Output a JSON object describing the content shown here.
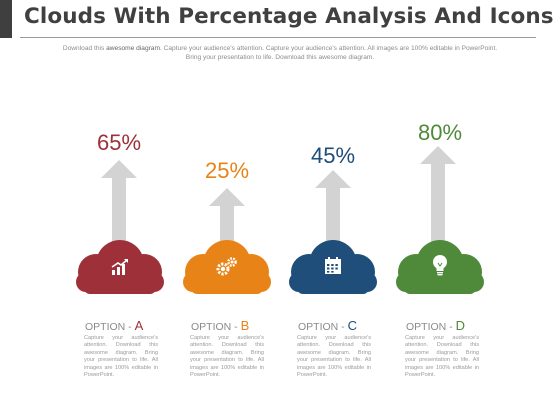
{
  "header": {
    "title": "Clouds With Percentage Analysis And Icons",
    "subtitle_pre": "Download this ",
    "subtitle_bold": "awesome diagram",
    "subtitle_post": ". Capture your audience's attention. Capture your audience's attention. All images are 100% editable in PowerPoint. Bring your presentation to life. Download this awesome diagram."
  },
  "options": [
    {
      "percent": "65%",
      "value": 65,
      "color": "#9e3039",
      "icon": "growth-chart-icon",
      "label": "OPTION - ",
      "letter": "A",
      "description": "Capture your audience's attention. Download this awesome diagram. Bring your presentation to life. All images are 100% editable in PowerPoint."
    },
    {
      "percent": "25%",
      "value": 25,
      "color": "#e88417",
      "icon": "gears-icon",
      "label": "OPTION - ",
      "letter": "B",
      "description": "Capture your audience's attention. Download this awesome diagram. Bring your presentation to life. All images are 100% editable in PowerPoint."
    },
    {
      "percent": "45%",
      "value": 45,
      "color": "#1e4e79",
      "icon": "calendar-icon",
      "label": "OPTION - ",
      "letter": "C",
      "description": "Capture your audience's attention. Download this awesome diagram. Bring your presentation to life. All images are 100% editable in PowerPoint."
    },
    {
      "percent": "80%",
      "value": 80,
      "color": "#4e8a3a",
      "icon": "lightbulb-icon",
      "label": "OPTION - ",
      "letter": "D",
      "description": "Capture your audience's attention. Download this awesome diagram. Bring your presentation to life. All images are 100% editable in PowerPoint."
    }
  ],
  "colors": {
    "arrow": "#d3d3d3",
    "title": "#404040",
    "text_muted": "#8a8a8a"
  }
}
